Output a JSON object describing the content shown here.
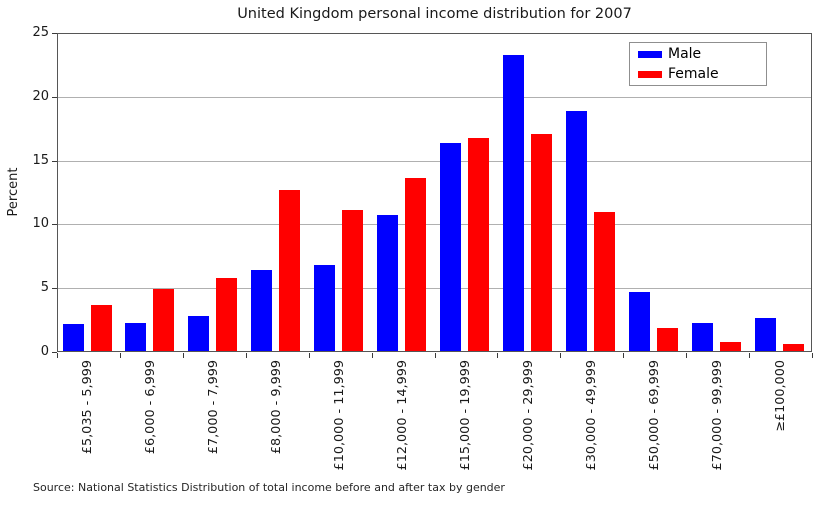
{
  "chart_data": {
    "type": "bar",
    "title": "United Kingdom personal income distribution for 2007",
    "xlabel": "",
    "ylabel": "Percent",
    "ylim": [
      0,
      25
    ],
    "yticks": [
      0,
      5,
      10,
      15,
      20,
      25
    ],
    "grid": "horizontal",
    "legend_position": "upper right",
    "categories": [
      "£5,035 - 5,999",
      "£6,000 - 6,999",
      "£7,000 - 7,999",
      "£8,000 - 9,999",
      "£10,000 - 11,999",
      "£12,000 - 14,999",
      "£15,000 - 19,999",
      "£20,000 - 29,999",
      "£30,000 - 49,999",
      "£50,000 - 69,999",
      "£70,000 - 99,999",
      "≥£100,000"
    ],
    "series": [
      {
        "name": "Male",
        "color": "#0000ff",
        "values": [
          2.2,
          2.3,
          2.8,
          6.4,
          6.8,
          10.7,
          16.4,
          23.3,
          18.9,
          4.7,
          2.3,
          2.7
        ]
      },
      {
        "name": "Female",
        "color": "#ff0000",
        "values": [
          3.7,
          4.9,
          5.8,
          12.7,
          11.1,
          13.6,
          16.8,
          17.1,
          11.0,
          1.9,
          0.8,
          0.6
        ]
      }
    ]
  },
  "source_note": "Source: National Statistics Distribution of total income before and after tax by gender",
  "colors": {
    "background": "#ffffff",
    "grid": "#b0b0b0",
    "frame": "#565656",
    "tick": "#3a3a3a",
    "text": "#1a1a1a"
  }
}
